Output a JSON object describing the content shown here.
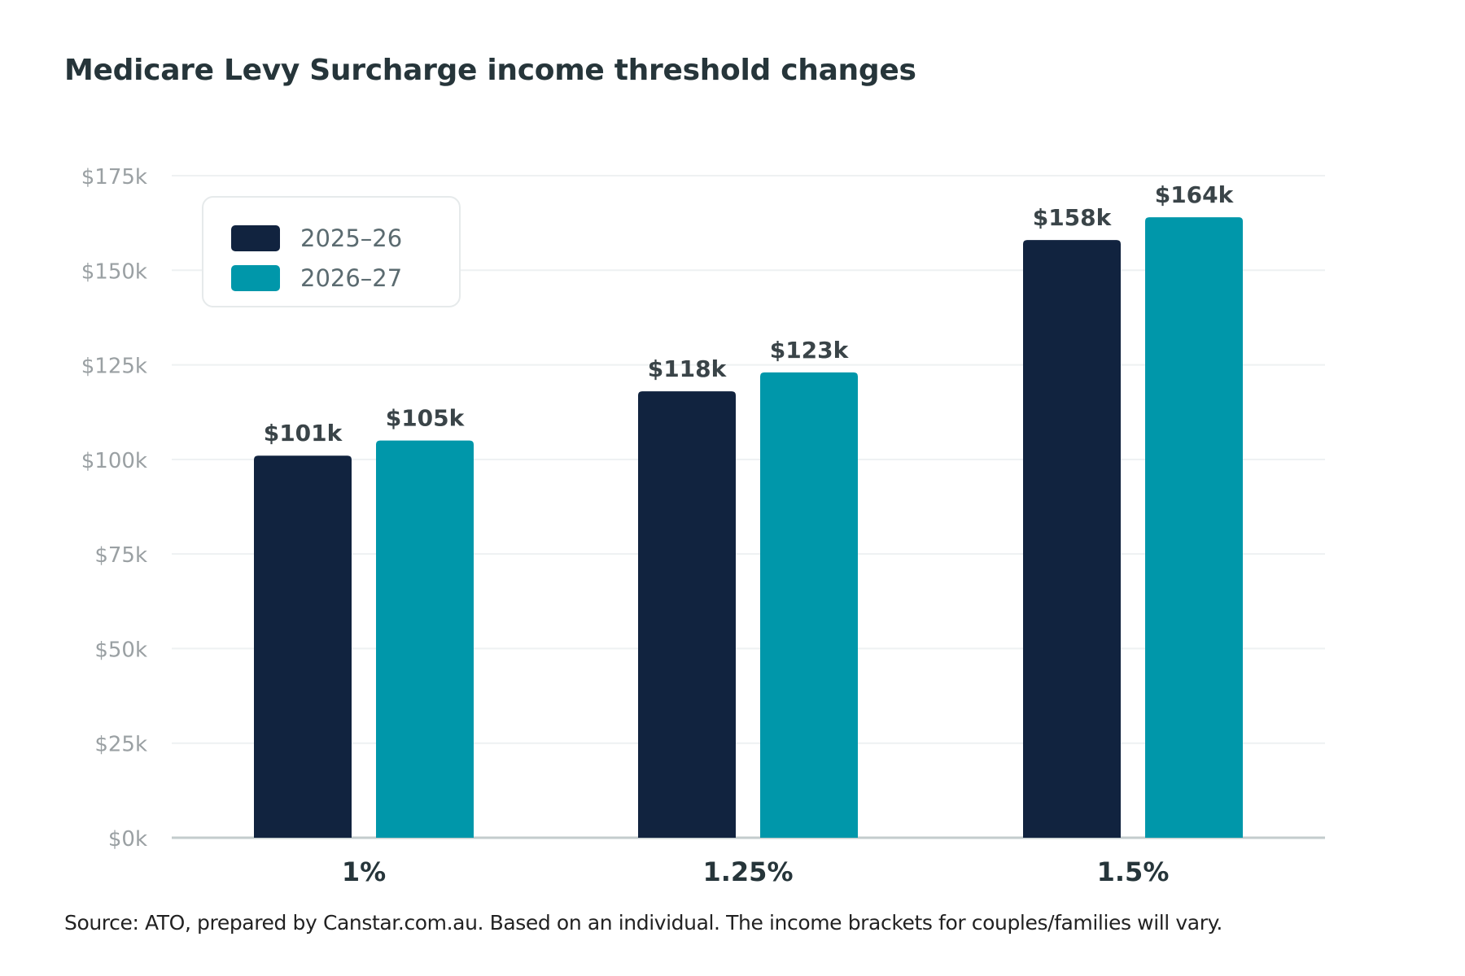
{
  "title": "Medicare Levy Surcharge income threshold changes",
  "source": "Source: ATO, prepared by Canstar.com.au. Based on an individual. The income brackets for couples/families will vary.",
  "colors": {
    "series_2025": "#11233f",
    "series_2026": "#0097aa",
    "grid": "#eef1f2",
    "axis": "#c3cccd",
    "tick": "#9aa0a3",
    "title": "#26353a",
    "data_label": "#3a4448",
    "category": "#26353a"
  },
  "chart_data": {
    "type": "bar",
    "title": "Medicare Levy Surcharge income threshold changes",
    "xlabel": "",
    "ylabel": "",
    "categories": [
      "1%",
      "1.25%",
      "1.5%"
    ],
    "series": [
      {
        "name": "2025–26",
        "values": [
          101,
          118,
          158
        ],
        "labels": [
          "$101k",
          "$118k",
          "$158k"
        ]
      },
      {
        "name": "2026–27",
        "values": [
          105,
          123,
          164
        ],
        "labels": [
          "$105k",
          "$123k",
          "$164k"
        ]
      }
    ],
    "ylim": [
      0,
      175
    ],
    "yticks": [
      0,
      25,
      50,
      75,
      100,
      125,
      150,
      175
    ],
    "ytick_labels": [
      "$0k",
      "$25k",
      "$50k",
      "$75k",
      "$100k",
      "$125k",
      "$150k",
      "$175k"
    ],
    "grid": true,
    "legend_position": "top-left"
  }
}
